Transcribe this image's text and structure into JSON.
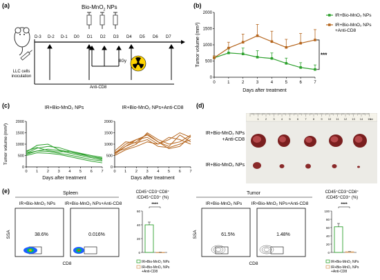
{
  "colors": {
    "green": "#2ca02c",
    "brown": "#b5651d",
    "light_green": "#7fd07f",
    "light_brown": "#d9a066"
  },
  "panel_a": {
    "label": "(a)",
    "np_label": "Bio-MnO",
    "np_sub": "2",
    "np_tail": " NPs",
    "days": [
      "D-3",
      "D-2",
      "D-1",
      "D0",
      "D1",
      "D2",
      "D3",
      "D4",
      "D5",
      "D6",
      "D7"
    ],
    "cells_line1": "LLC cells",
    "cells_line2": "inoculation",
    "dose": "8Gy",
    "anti": "Anti-CD8",
    "icons": [
      "mouse-icon",
      "syringe-icon",
      "radiation-icon"
    ]
  },
  "panel_b": {
    "label": "(b)",
    "ylabel": "Tumor volume (mm³)",
    "xlabel": "Days after treatment",
    "sig": "***",
    "legend": [
      "IR+Bio-MnO₂ NPs",
      "IR+Bio-MnO₂ NPs +Anti-CD8"
    ]
  },
  "panel_c": {
    "label": "(c)",
    "title_left": "IR+Bio-MnO₂ NPs",
    "title_right": "IR+Bio-MnO₂ NPs+Anti-CD8",
    "ylabel": "Tumor volume (mm³)",
    "xlabel": "Days after treatment"
  },
  "panel_d": {
    "label": "(d)",
    "row1_line1": "IR+Bio-MnO₂ NPs",
    "row1_line2": "+Anti-CD8",
    "row2": "IR+Bio-MnO₂ NPs",
    "ruler_numbers": [
      "1",
      "2",
      "3",
      "4",
      "5",
      "6",
      "7",
      "8",
      "9",
      "10",
      "11",
      "12",
      "13",
      "14",
      "15"
    ],
    "ruler_unit": "cm"
  },
  "panel_e": {
    "label": "(e)",
    "spleen": {
      "title": "Spleen",
      "g1": "IR+Bio-MnO₂ NPs",
      "g2": "IR+Bio-MnO₂ NPs+Anti-CD8",
      "p1": "38.6%",
      "p2": "0.016%",
      "ssa": "SSA",
      "cd8": "CD8",
      "bar_title_line1": "CD45⁺CD3⁺CD8⁺",
      "bar_title_line2": "/CD45⁺CD3⁺ (%)",
      "sig": "****",
      "legend": [
        "IR+Bio-MnO₂ NPs",
        "IR+Bio-MnO₂ NPs +Anti-CD8"
      ]
    },
    "tumor": {
      "title": "Tumor",
      "g1": "IR+Bio-MnO₂ NPs",
      "g2": "IR+Bio-MnO₂ NPs+Anti-CD8",
      "p1": "61.5%",
      "p2": "1.48%",
      "ssa": "SSA",
      "cd8": "CD8",
      "bar_title_line1": "CD45⁺CD3⁺CD8⁺",
      "bar_title_line2": "/CD45⁺CD3⁺ (%)",
      "sig": "****",
      "legend": [
        "IR+Bio-MnO₂ NPs",
        "IR+Bio-MnO₂ NPs +Anti-CD8"
      ]
    }
  },
  "chart_data": [
    {
      "type": "line",
      "panel": "b",
      "x": [
        0,
        1,
        2,
        3,
        4,
        5,
        6,
        7
      ],
      "xlabel": "Days after treatment",
      "ylabel": "Tumor volume (mm³)",
      "ylim": [
        0,
        2000
      ],
      "yticks": [
        0,
        500,
        1000,
        1500,
        2000
      ],
      "series": [
        {
          "name": "IR+Bio-MnO₂ NPs",
          "values": [
            600,
            750,
            720,
            620,
            580,
            430,
            300,
            240
          ],
          "err": [
            60,
            150,
            180,
            200,
            170,
            160,
            150,
            140
          ]
        },
        {
          "name": "IR+Bio-MnO₂ NPs +Anti-CD8",
          "values": [
            600,
            900,
            1080,
            1280,
            1100,
            920,
            1050,
            1150
          ],
          "err": [
            60,
            180,
            250,
            350,
            320,
            250,
            300,
            320
          ]
        }
      ],
      "annotation": "***"
    },
    {
      "type": "line",
      "panel": "c-left",
      "x": [
        0,
        1,
        2,
        3,
        4,
        5,
        6,
        7
      ],
      "ylim": [
        0,
        2000
      ],
      "yticks": [
        0,
        500,
        1000,
        1500,
        2000
      ],
      "series": [
        {
          "values": [
            550,
            700,
            780,
            720,
            600,
            500,
            400,
            300
          ]
        },
        {
          "values": [
            600,
            820,
            900,
            850,
            700,
            580,
            450,
            380
          ]
        },
        {
          "values": [
            650,
            950,
            1000,
            750,
            650,
            550,
            450,
            350
          ]
        },
        {
          "values": [
            500,
            620,
            600,
            550,
            450,
            350,
            250,
            180
          ]
        },
        {
          "values": [
            700,
            850,
            720,
            650,
            700,
            600,
            500,
            420
          ]
        },
        {
          "values": [
            600,
            700,
            680,
            600,
            520,
            420,
            320,
            260
          ]
        }
      ]
    },
    {
      "type": "line",
      "panel": "c-right",
      "x": [
        0,
        1,
        2,
        3,
        4,
        5,
        6,
        7
      ],
      "ylim": [
        0,
        2000
      ],
      "yticks": [
        0,
        500,
        1000,
        1500,
        2000
      ],
      "series": [
        {
          "values": [
            550,
            900,
            1100,
            1450,
            1100,
            900,
            1400,
            1100
          ]
        },
        {
          "values": [
            600,
            1000,
            1200,
            1300,
            1000,
            1200,
            1500,
            1300
          ]
        },
        {
          "values": [
            650,
            800,
            1000,
            1500,
            1200,
            1000,
            1100,
            1400
          ]
        },
        {
          "values": [
            700,
            1100,
            1050,
            1200,
            900,
            850,
            1000,
            1200
          ]
        },
        {
          "values": [
            500,
            750,
            900,
            1100,
            1000,
            1300,
            1200,
            1000
          ]
        },
        {
          "values": [
            600,
            900,
            1200,
            1400,
            1100,
            800,
            900,
            1350
          ]
        }
      ]
    },
    {
      "type": "bar",
      "panel": "e-spleen",
      "categories": [
        "IR+Bio-MnO₂ NPs",
        "IR+Bio-MnO₂ NPs +Anti-CD8"
      ],
      "values": [
        40,
        0.1
      ],
      "err": [
        4,
        0.05
      ],
      "ylim": [
        0,
        60
      ],
      "yticks": [
        0,
        20,
        40,
        60
      ]
    },
    {
      "type": "bar",
      "panel": "e-tumor",
      "categories": [
        "IR+Bio-MnO₂ NPs",
        "IR+Bio-MnO₂ NPs +Anti-CD8"
      ],
      "values": [
        62,
        1.5
      ],
      "err": [
        8,
        0.5
      ],
      "ylim": [
        0,
        100
      ],
      "yticks": [
        0,
        20,
        40,
        60,
        80,
        100
      ]
    }
  ]
}
